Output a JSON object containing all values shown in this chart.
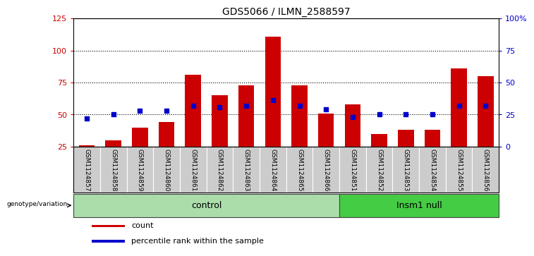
{
  "title": "GDS5066 / ILMN_2588597",
  "samples": [
    "GSM1124857",
    "GSM1124858",
    "GSM1124859",
    "GSM1124860",
    "GSM1124861",
    "GSM1124862",
    "GSM1124863",
    "GSM1124864",
    "GSM1124865",
    "GSM1124866",
    "GSM1124851",
    "GSM1124852",
    "GSM1124853",
    "GSM1124854",
    "GSM1124855",
    "GSM1124856"
  ],
  "counts": [
    26,
    30,
    40,
    44,
    81,
    65,
    73,
    111,
    73,
    51,
    58,
    35,
    38,
    38,
    86,
    80
  ],
  "percentile_ranks_pct": [
    22,
    25,
    28,
    28,
    32,
    31,
    32,
    36,
    32,
    29,
    23,
    25,
    25,
    25,
    32,
    32
  ],
  "n_control": 10,
  "n_insm1": 6,
  "bar_color": "#CC0000",
  "dot_color": "#0000CC",
  "left_ylim": [
    25,
    125
  ],
  "left_yticks": [
    25,
    50,
    75,
    100,
    125
  ],
  "right_ylim": [
    0,
    100
  ],
  "right_yticks": [
    0,
    25,
    50,
    75,
    100
  ],
  "right_yticklabels": [
    "0",
    "25",
    "50",
    "75",
    "100%"
  ],
  "hlines": [
    50,
    75,
    100
  ],
  "control_color": "#AADDAA",
  "insm1_color": "#44CC44",
  "label_bg": "#CCCCCC",
  "genotype_label": "genotype/variation",
  "legend_count": "count",
  "legend_pct": "percentile rank within the sample"
}
